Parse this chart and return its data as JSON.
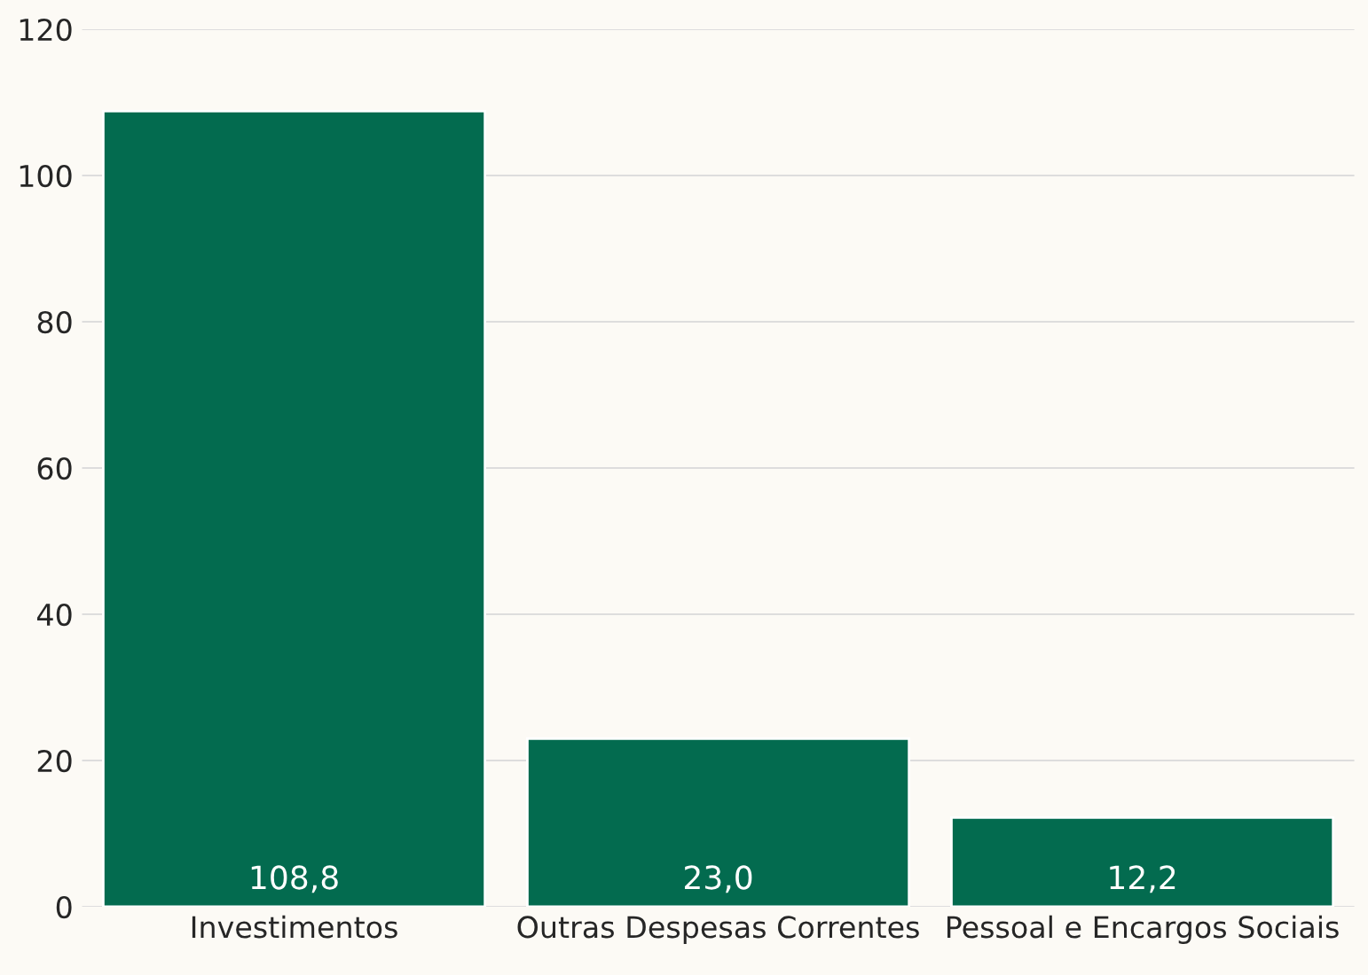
{
  "chart_data": {
    "type": "bar",
    "categories": [
      "Investimentos",
      "Outras Despesas Correntes",
      "Pessoal e Encargos Sociais"
    ],
    "values": [
      108.8,
      23.0,
      12.2
    ],
    "value_labels": [
      "108,8",
      "23,0",
      "12,2"
    ],
    "color": "#036b4f",
    "ylim": [
      0,
      120
    ],
    "yticks": [
      0,
      20,
      40,
      60,
      80,
      100,
      120
    ],
    "grid": "y",
    "legend": false
  }
}
